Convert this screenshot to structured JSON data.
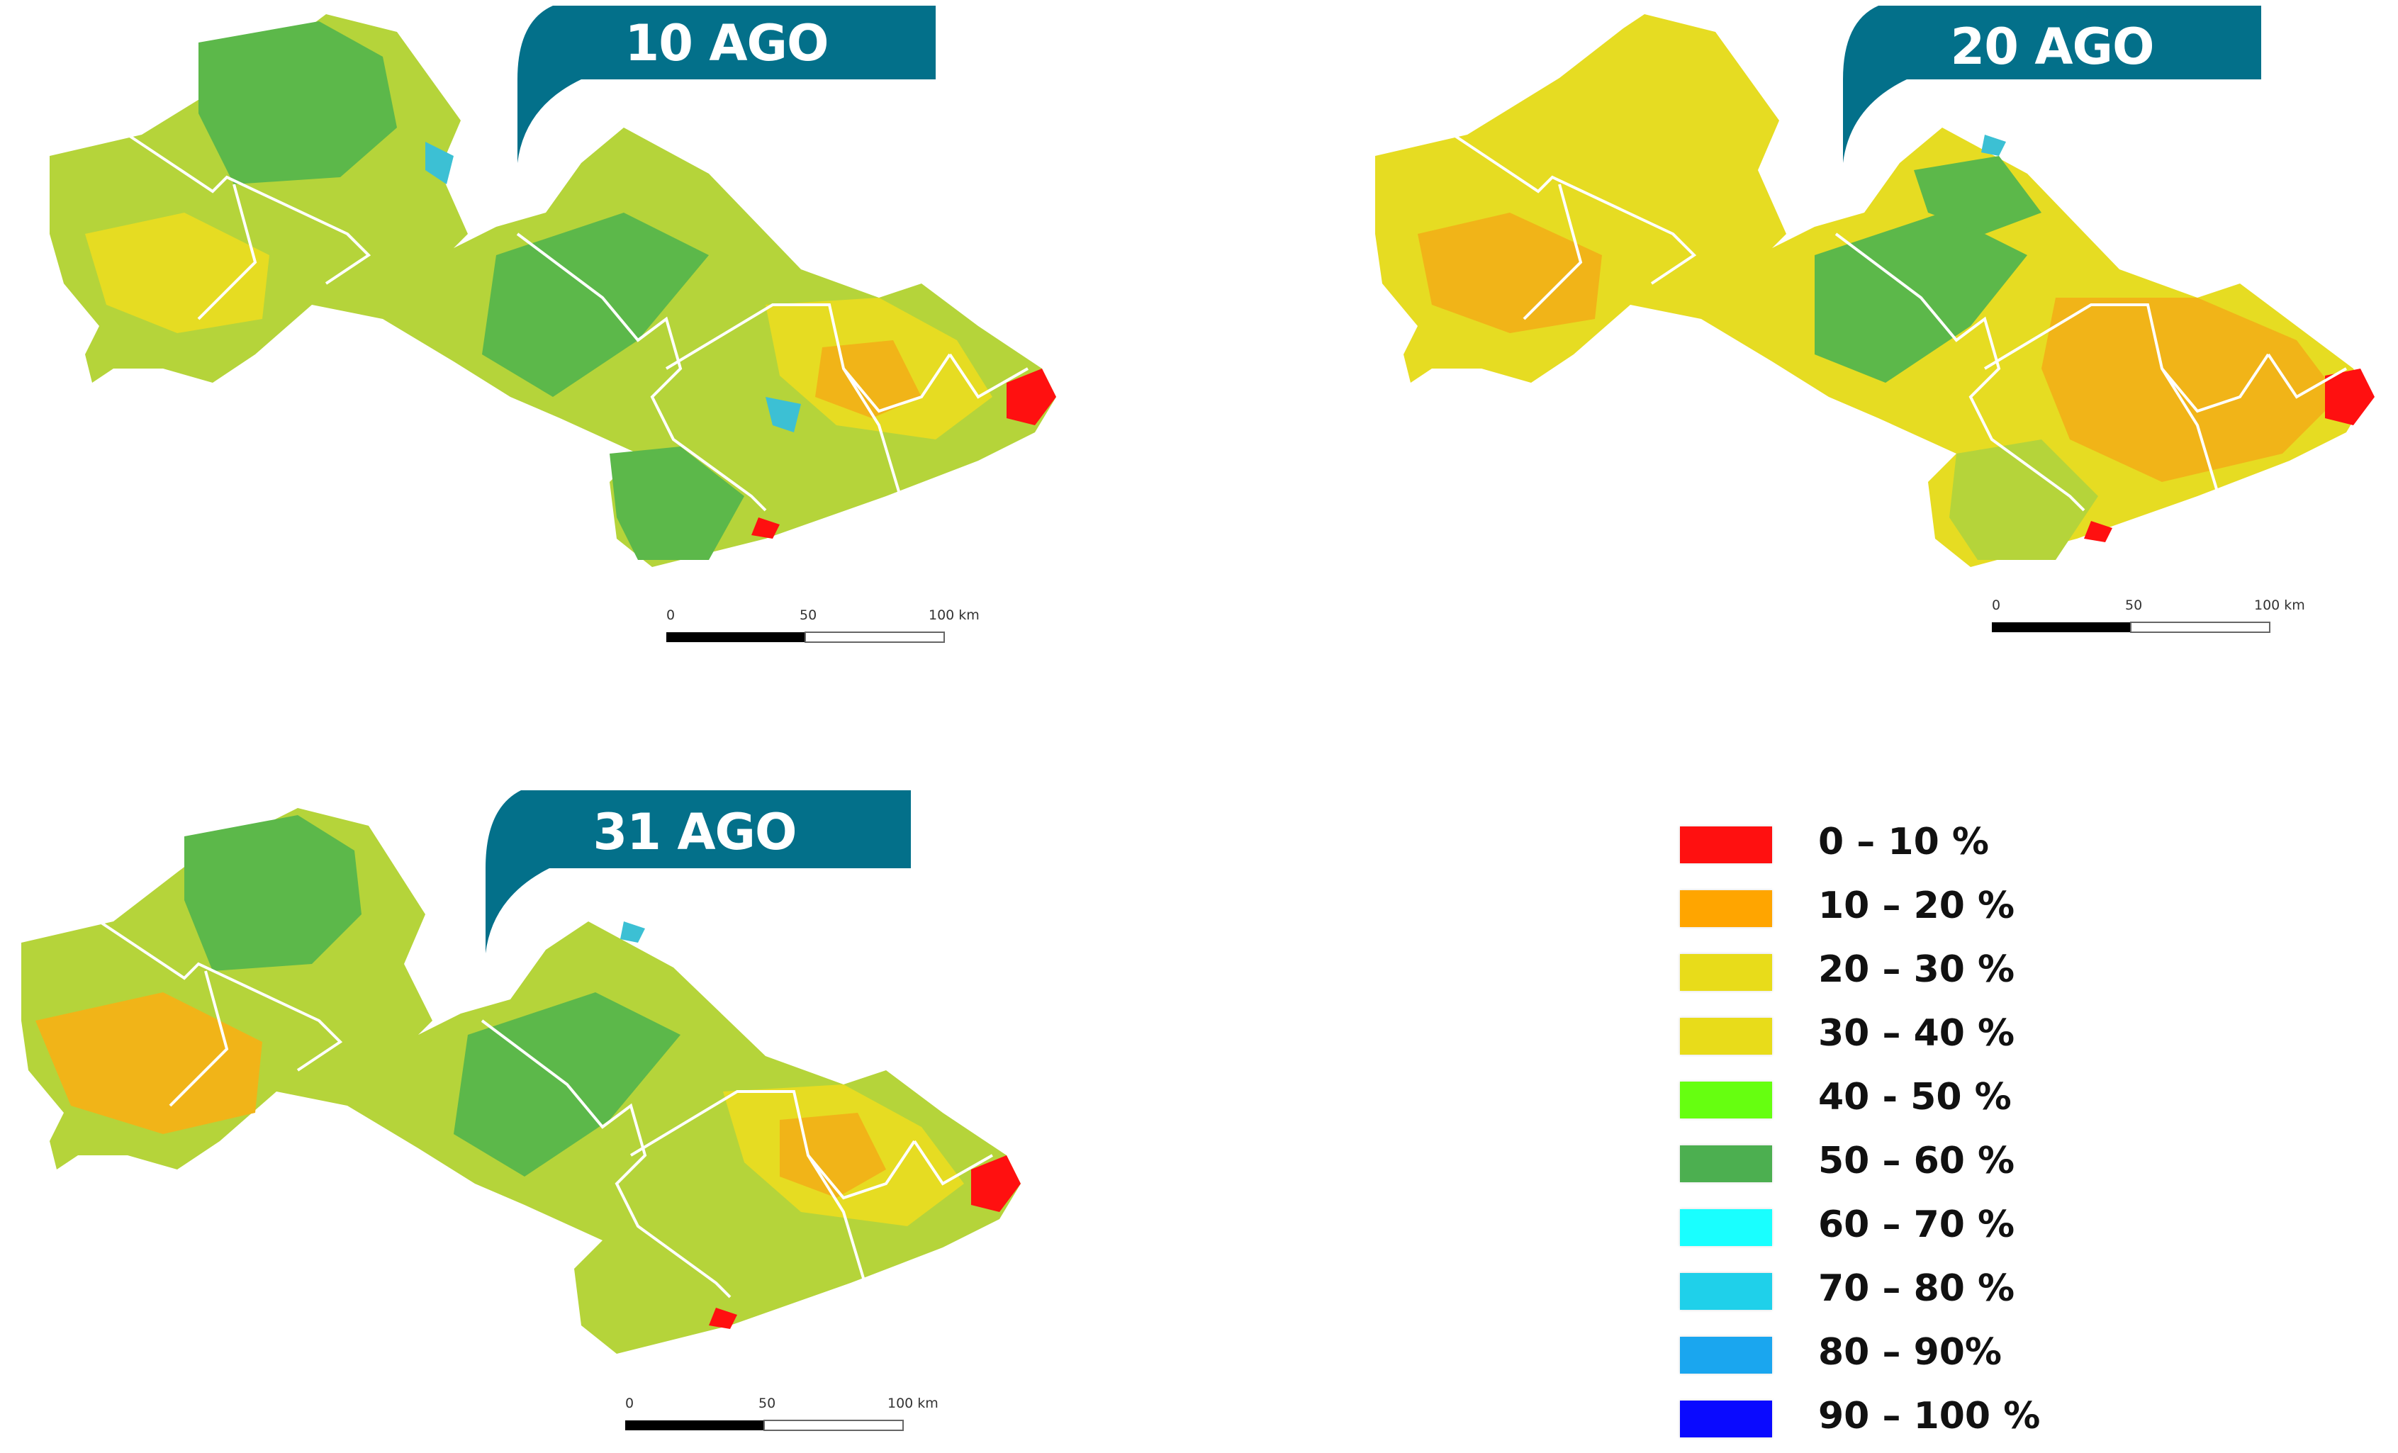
{
  "maps": [
    {
      "id": "map-10-ago",
      "date_label": "10 AGO",
      "dominant": "green"
    },
    {
      "id": "map-20-ago",
      "date_label": "20 AGO",
      "dominant": "yellow"
    },
    {
      "id": "map-31-ago",
      "date_label": "31 AGO",
      "dominant": "mixed"
    }
  ],
  "scale_bar": {
    "labels": [
      "0",
      "50",
      "100 km"
    ]
  },
  "legend": {
    "items": [
      {
        "label": "0 – 10 %",
        "color": "#ff1010"
      },
      {
        "label": "10 – 20 %",
        "color": "#ffa500"
      },
      {
        "label": "20 – 30 %",
        "color": "#e8dc1a"
      },
      {
        "label": "30 – 40 %",
        "color": "#e8dc1a"
      },
      {
        "label": "40 - 50 %",
        "color": "#66ff10"
      },
      {
        "label": "50 – 60 %",
        "color": "#4caf50"
      },
      {
        "label": "60 – 70 %",
        "color": "#19ffff"
      },
      {
        "label": "70 – 80 %",
        "color": "#1fd0ea"
      },
      {
        "label": "80 – 90%",
        "color": "#1aa6ef"
      },
      {
        "label": "90 – 100 %",
        "color": "#0a0aff"
      }
    ]
  },
  "colors": {
    "tab": "#03708a",
    "green": "#5cb84a",
    "yellow_green": "#b5d43a",
    "yellow": "#e6dc22",
    "orange": "#f1b418",
    "red": "#ff1010",
    "cyan": "#3cc0d4",
    "boundary": "#ffffff"
  }
}
